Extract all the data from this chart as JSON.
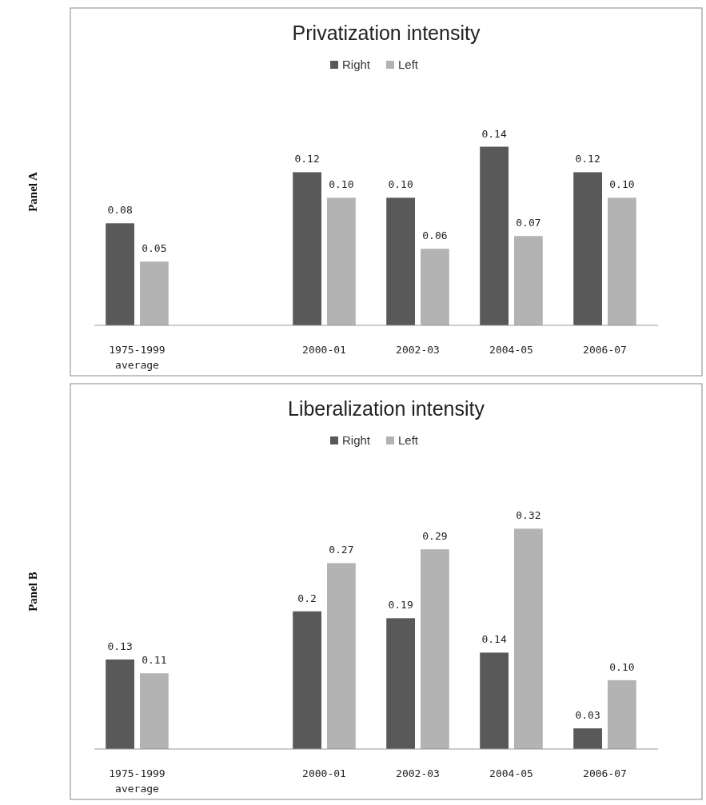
{
  "chart_data": [
    {
      "type": "bar",
      "title": "Privatization intensity",
      "ylabel": "Panel A",
      "legend": "top",
      "categories": [
        "1975-1999 average",
        null,
        "2000-01",
        "2002-03",
        "2004-05",
        "2006-07"
      ],
      "series": [
        {
          "name": "Right",
          "color": "#595959",
          "values": [
            0.08,
            null,
            0.12,
            0.1,
            0.14,
            0.12
          ],
          "value_labels": [
            "0.08",
            null,
            "0.12",
            "0.10",
            "0.14",
            "0.12"
          ]
        },
        {
          "name": "Left",
          "color": "#b3b3b3",
          "values": [
            0.05,
            null,
            0.1,
            0.06,
            0.07,
            0.1
          ],
          "value_labels": [
            "0.05",
            null,
            "0.10",
            "0.06",
            "0.07",
            "0.10"
          ]
        }
      ]
    },
    {
      "type": "bar",
      "title": "Liberalization intensity",
      "ylabel": "Panel B",
      "legend": "top",
      "categories": [
        "1975-1999 average",
        null,
        "2000-01",
        "2002-03",
        "2004-05",
        "2006-07"
      ],
      "series": [
        {
          "name": "Right",
          "color": "#595959",
          "values": [
            0.13,
            null,
            0.2,
            0.19,
            0.14,
            0.03
          ],
          "value_labels": [
            "0.13",
            null,
            "0.2",
            "0.19",
            "0.14",
            "0.03"
          ]
        },
        {
          "name": "Left",
          "color": "#b3b3b3",
          "values": [
            0.11,
            null,
            0.27,
            0.29,
            0.32,
            0.1
          ],
          "value_labels": [
            "0.11",
            null,
            "0.27",
            "0.29",
            "0.32",
            "0.10"
          ]
        }
      ]
    }
  ]
}
